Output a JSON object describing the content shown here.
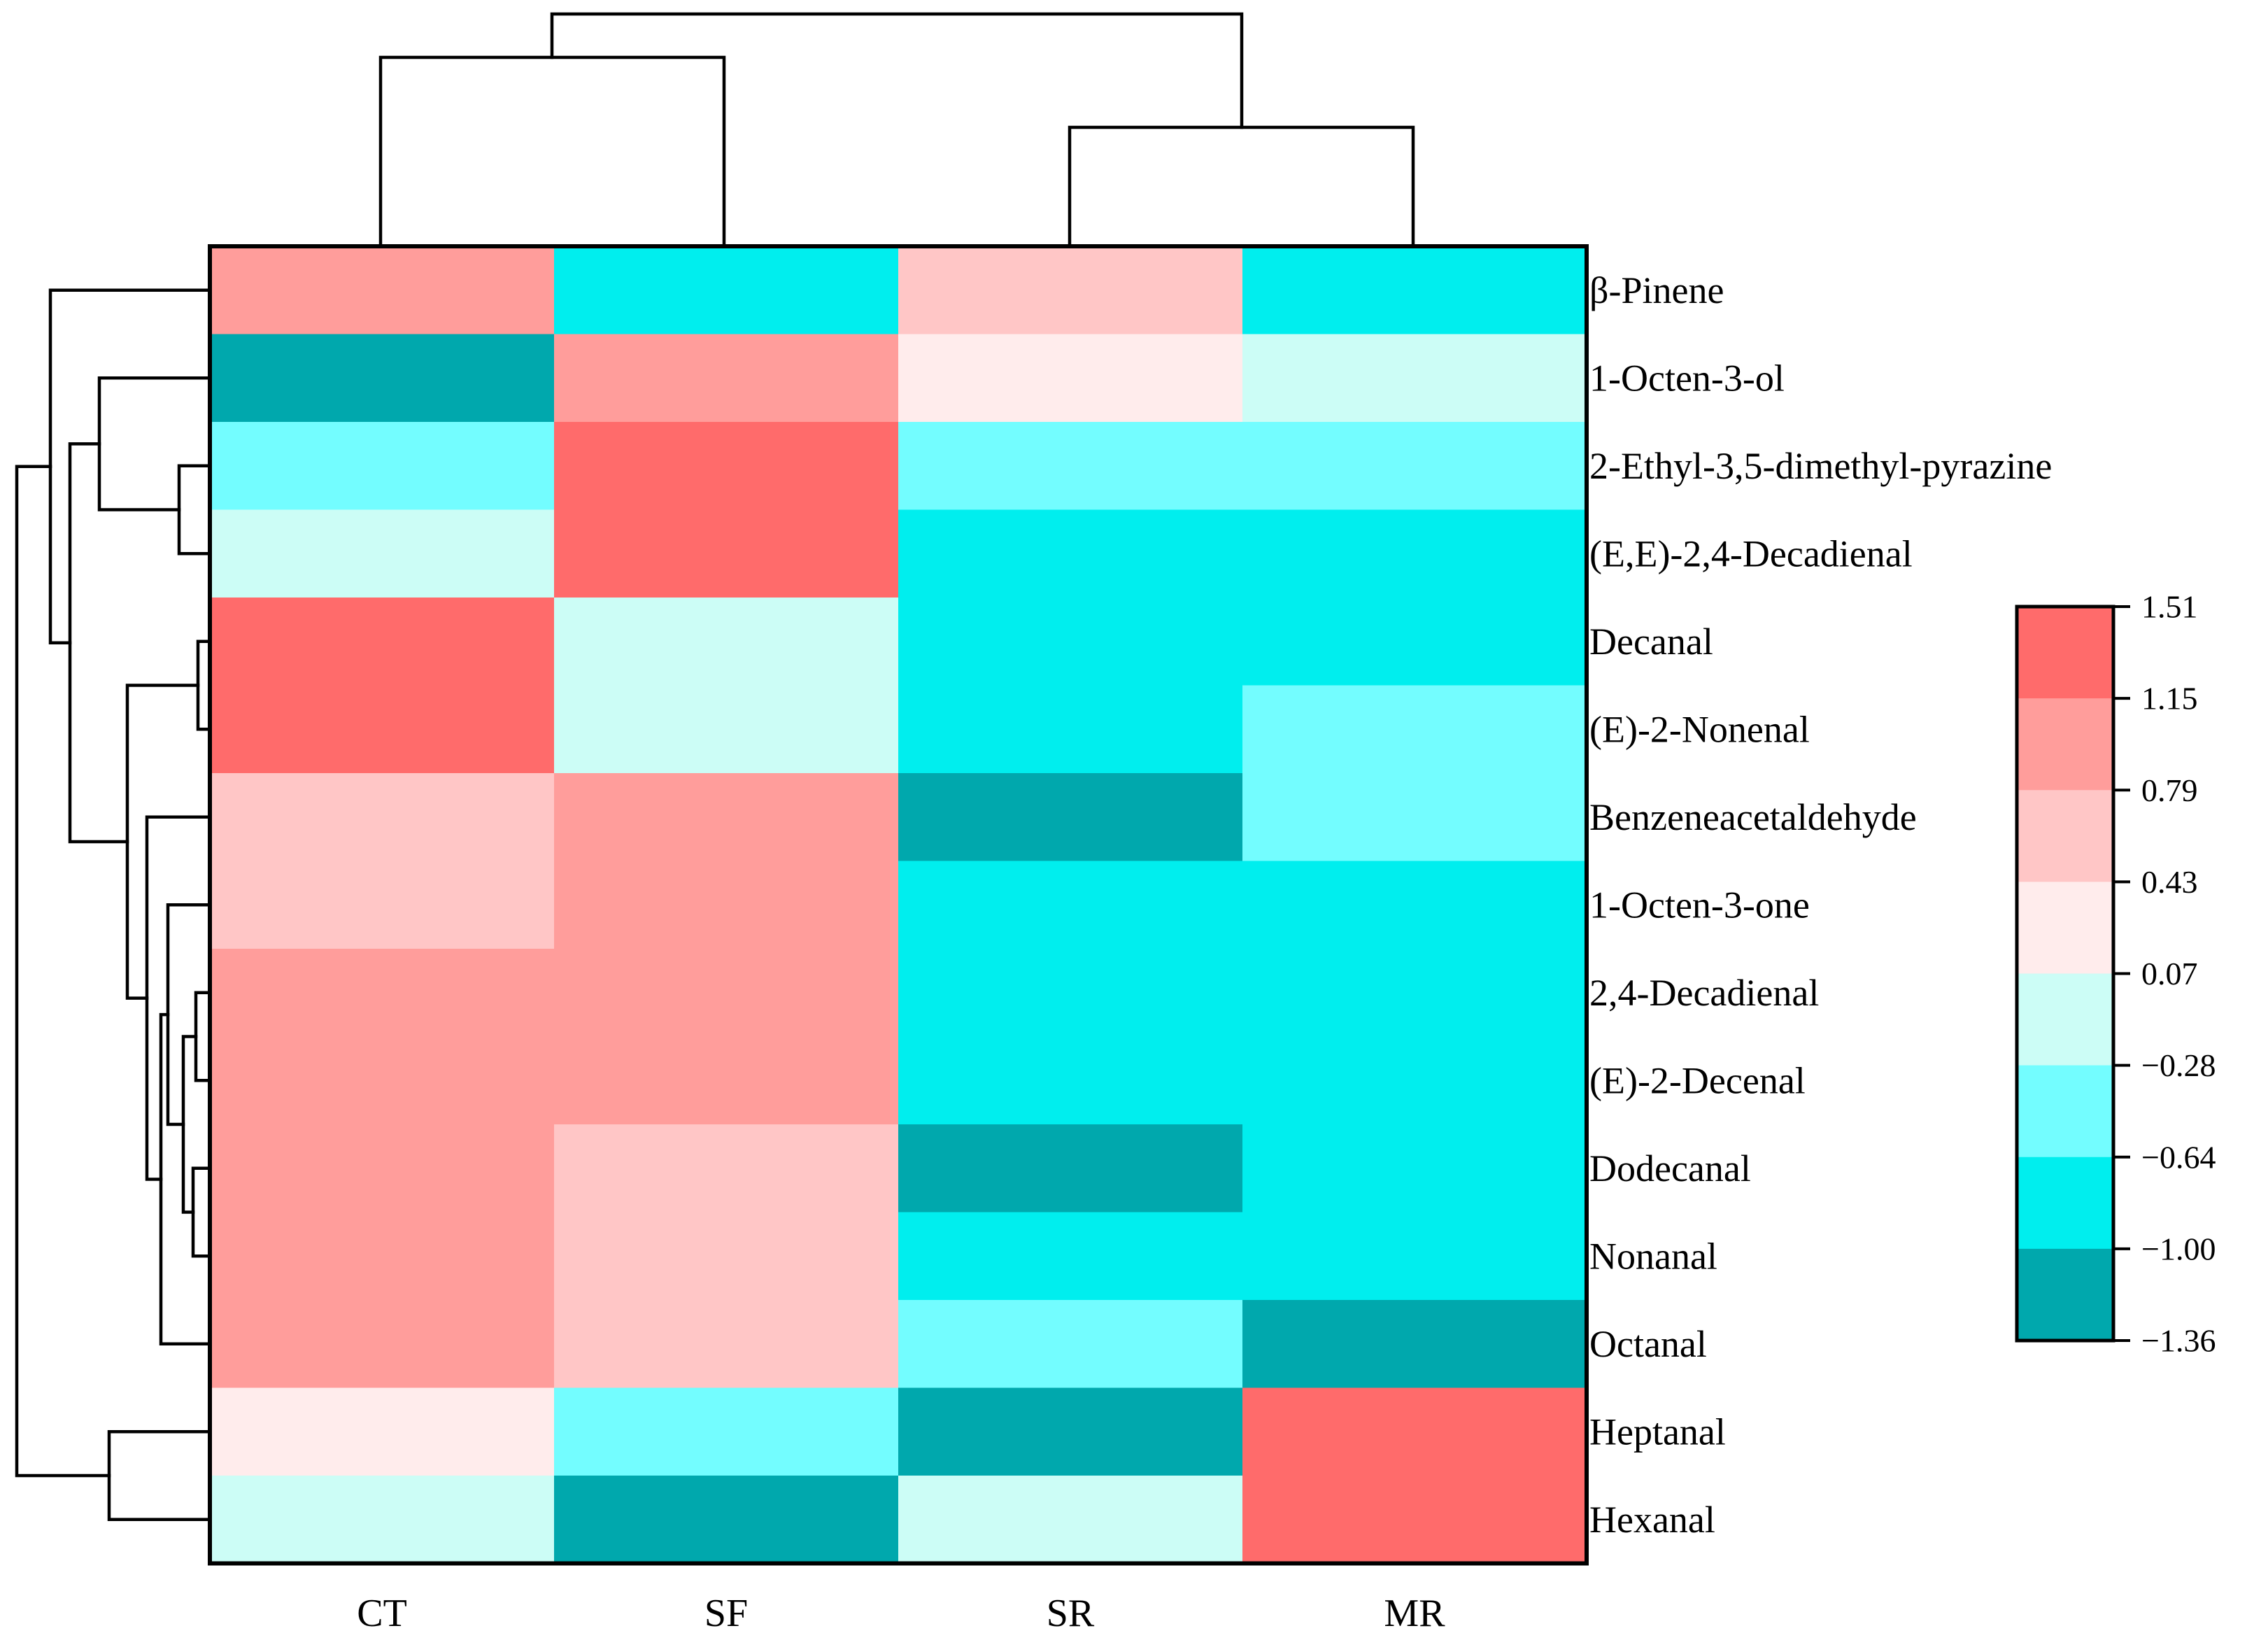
{
  "chart_data": {
    "type": "heatmap",
    "title": "",
    "columns": [
      "CT",
      "SF",
      "SR",
      "MR"
    ],
    "rows": [
      "β-Pinene",
      "1-Octen-3-ol",
      "2-Ethyl-3,5-dimethyl-pyrazine",
      "(E,E)-2,4-Decadienal",
      "Decanal",
      "(E)-2-Nonenal",
      "Benzeneacetaldehyde",
      "1-Octen-3-one",
      "2,4-Decadienal",
      "(E)-2-Decenal",
      "Dodecanal",
      "Nonanal",
      "Octanal",
      "Heptanal",
      "Hexanal"
    ],
    "values": [
      [
        0.97,
        -0.82,
        0.61,
        -0.82
      ],
      [
        -1.18,
        0.97,
        0.25,
        -0.1
      ],
      [
        -0.46,
        1.33,
        -0.46,
        -0.46
      ],
      [
        -0.1,
        1.33,
        -0.82,
        -0.82
      ],
      [
        1.33,
        -0.1,
        -0.82,
        -0.82
      ],
      [
        1.33,
        -0.1,
        -0.82,
        -0.46
      ],
      [
        0.61,
        0.97,
        -1.18,
        -0.46
      ],
      [
        0.61,
        0.97,
        -0.82,
        -0.82
      ],
      [
        0.97,
        0.97,
        -0.82,
        -0.82
      ],
      [
        0.97,
        0.97,
        -0.82,
        -0.82
      ],
      [
        0.97,
        0.61,
        -1.18,
        -0.82
      ],
      [
        0.97,
        0.61,
        -0.82,
        -0.82
      ],
      [
        0.97,
        0.61,
        -0.46,
        -1.18
      ],
      [
        0.25,
        -0.46,
        -1.18,
        1.33
      ],
      [
        -0.1,
        -1.18,
        -0.1,
        1.33
      ]
    ],
    "colorbar": {
      "ticks": [
        "1.51",
        "1.15",
        "0.79",
        "0.43",
        "0.07",
        "−0.28",
        "−0.64",
        "−1.00",
        "−1.36"
      ],
      "range": [
        -1.36,
        1.51
      ],
      "colors": [
        "#ff6b6b",
        "#ff9d9b",
        "#ffc6c6",
        "#ffecec",
        "#ccfdf6",
        "#73fdff",
        "#00eeee",
        "#00a8ad"
      ]
    },
    "column_dendrogram": "((CT,SF),(SR,MR))",
    "row_dendrogram": "(β-Pinene,((1-Octen-3-ol,(2-Ethyl-3,5-dimethyl-pyrazine,(E,E)-2,4-Decadienal)),((Decanal,(E)-2-Nonenal),(Benzeneacetaldehyde,(1-Octen-3-one,((2,4-Decadienal,(E)-2-Decenal),(Dodecanal,Nonanal)),Octanal)))),(Heptanal,Hexanal))"
  }
}
